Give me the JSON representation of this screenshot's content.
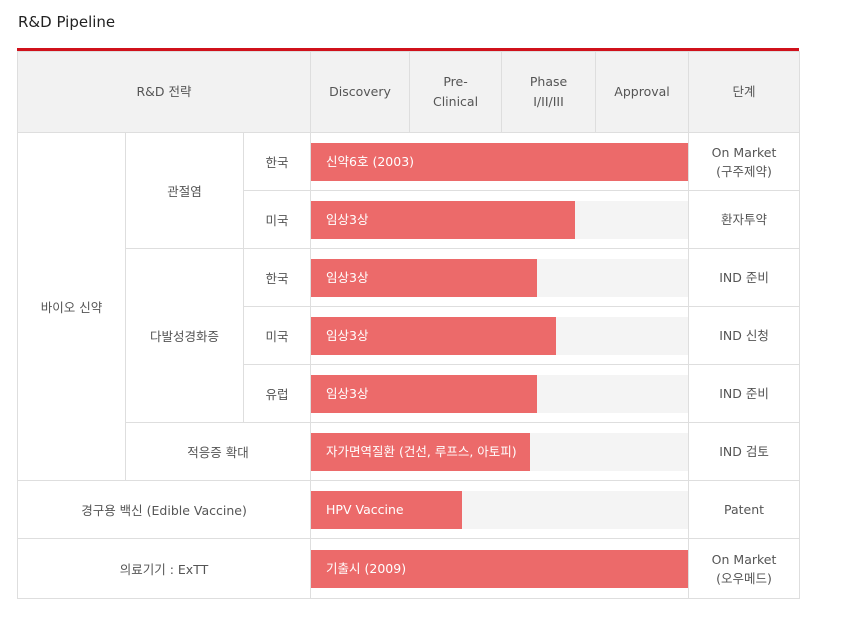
{
  "page": {
    "title": "R&D Pipeline",
    "accent_color": "#d0111b",
    "bar_color": "#ec6a6a"
  },
  "table": {
    "headers": {
      "strategy": "R&D 전략",
      "stages": [
        "Discovery",
        "Pre-\nClinical",
        "Phase\nI/II/III",
        "Approval"
      ],
      "status": "단계"
    },
    "groups": {
      "bio": "바이오 신약",
      "arthritis": "관절염",
      "ms": "다발성경화증",
      "expansion": "적응증 확대",
      "vaccine": "경구용 백신 (Edible Vaccine)",
      "device": "의료기기 : ExTT"
    },
    "rows": [
      {
        "region": "한국",
        "label": "신약6호 (2003)",
        "progress": 1.0,
        "status": "On Market\n(구주제약)"
      },
      {
        "region": "미국",
        "label": "임상3상",
        "progress": 0.7,
        "status": "환자투약"
      },
      {
        "region": "한국",
        "label": "임상3상",
        "progress": 0.6,
        "status": "IND 준비"
      },
      {
        "region": "미국",
        "label": "임상3상",
        "progress": 0.65,
        "status": "IND 신청"
      },
      {
        "region": "유럽",
        "label": "임상3상",
        "progress": 0.6,
        "status": "IND 준비"
      },
      {
        "region": "",
        "label": "자가면역질환 (건선, 루프스, 아토피)",
        "progress": 0.58,
        "status": "IND 검토"
      },
      {
        "region": "",
        "label": "HPV Vaccine",
        "progress": 0.4,
        "status": "Patent"
      },
      {
        "region": "",
        "label": "기출시 (2009)",
        "progress": 1.0,
        "status": "On Market\n(오우메드)"
      }
    ]
  }
}
